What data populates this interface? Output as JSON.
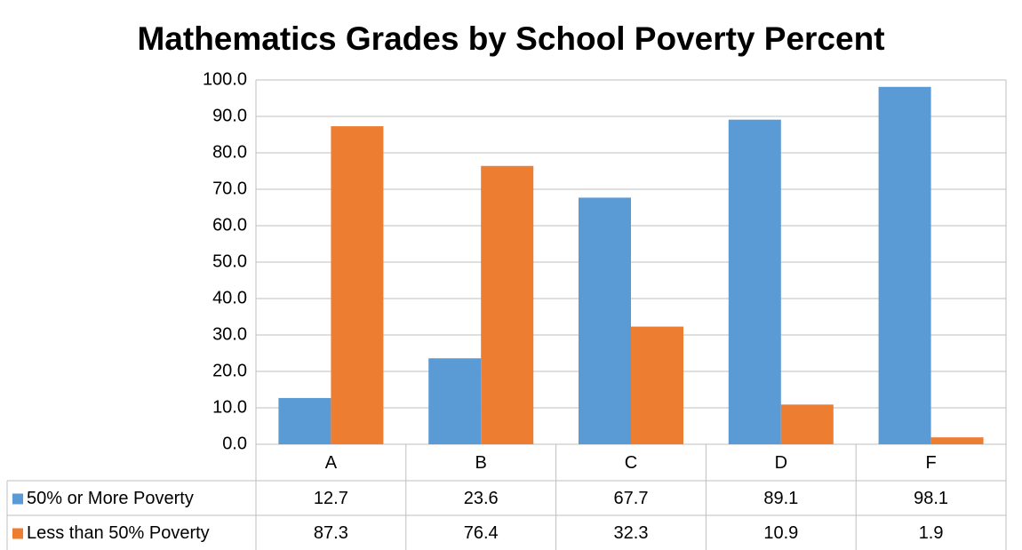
{
  "chart_data": {
    "type": "bar",
    "title": "Mathematics Grades by School Poverty Percent",
    "categories": [
      "A",
      "B",
      "C",
      "D",
      "F"
    ],
    "series": [
      {
        "name": "50% or More Poverty",
        "color": "#5b9bd5",
        "values": [
          12.7,
          23.6,
          67.7,
          89.1,
          98.1
        ]
      },
      {
        "name": "Less than 50% Poverty",
        "color": "#ed7d31",
        "values": [
          87.3,
          76.4,
          32.3,
          10.9,
          1.9
        ]
      }
    ],
    "ylim": [
      0,
      100
    ],
    "yticks": [
      {
        "value": 0,
        "label": "0.0"
      },
      {
        "value": 10,
        "label": "10.0"
      },
      {
        "value": 20,
        "label": "20.0"
      },
      {
        "value": 30,
        "label": "30.0"
      },
      {
        "value": 40,
        "label": "40.0"
      },
      {
        "value": 50,
        "label": "50.0"
      },
      {
        "value": 60,
        "label": "60.0"
      },
      {
        "value": 70,
        "label": "70.0"
      },
      {
        "value": 80,
        "label": "80.0"
      },
      {
        "value": 90,
        "label": "90.0"
      },
      {
        "value": 100,
        "label": "100.0"
      }
    ],
    "grid": true
  }
}
